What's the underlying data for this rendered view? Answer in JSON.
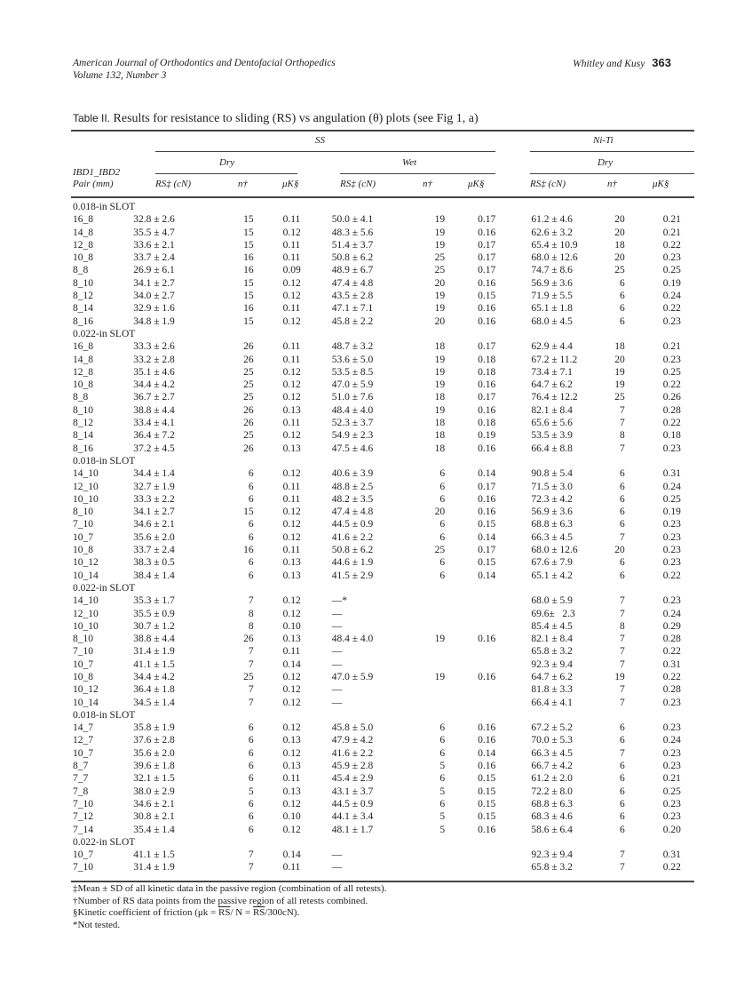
{
  "header": {
    "journal": "American Journal of Orthodontics and Dentofacial Orthopedics",
    "volume": "Volume 132, Number 3",
    "authors": "Whitley and Kusy",
    "page": "363"
  },
  "caption": {
    "label": "Table II.",
    "text": "Results for resistance to sliding (RS) vs angulation (θ) plots (see Fig 1, a)"
  },
  "columns": {
    "group_ss": "SS",
    "group_niti": "Ni-Ti",
    "dry": "Dry",
    "wet": "Wet",
    "niti_dry": "Dry",
    "pair_line1": "IBD1_IBD2",
    "pair_line2": "Pair (mm)",
    "rs": "RS‡ (cN)",
    "n": "n†",
    "mu": "μK§"
  },
  "sections": [
    {
      "label": "0.018-in SLOT",
      "rows": [
        [
          "16_8",
          "32.8 ± 2.6",
          "15",
          "0.11",
          "50.0 ± 4.1",
          "19",
          "0.17",
          "61.2 ± 4.6",
          "20",
          "0.21"
        ],
        [
          "14_8",
          "35.5 ± 4.7",
          "15",
          "0.12",
          "48.3 ± 5.6",
          "19",
          "0.16",
          "62.6 ± 3.2",
          "20",
          "0.21"
        ],
        [
          "12_8",
          "33.6 ± 2.1",
          "15",
          "0.11",
          "51.4 ± 3.7",
          "19",
          "0.17",
          "65.4 ± 10.9",
          "18",
          "0.22"
        ],
        [
          "10_8",
          "33.7 ± 2.4",
          "16",
          "0.11",
          "50.8 ± 6.2",
          "25",
          "0.17",
          "68.0 ± 12.6",
          "20",
          "0.23"
        ],
        [
          "8_8",
          "26.9 ± 6.1",
          "16",
          "0.09",
          "48.9 ± 6.7",
          "25",
          "0.17",
          "74.7 ± 8.6",
          "25",
          "0.25"
        ],
        [
          "8_10",
          "34.1 ± 2.7",
          "15",
          "0.12",
          "47.4 ± 4.8",
          "20",
          "0.16",
          "56.9 ± 3.6",
          "6",
          "0.19"
        ],
        [
          "8_12",
          "34.0 ± 2.7",
          "15",
          "0.12",
          "43.5 ± 2.8",
          "19",
          "0.15",
          "71.9 ± 5.5",
          "6",
          "0.24"
        ],
        [
          "8_14",
          "32.9 ± 1.6",
          "16",
          "0.11",
          "47.1 ± 7.1",
          "19",
          "0.16",
          "65.1 ± 1.8",
          "6",
          "0.22"
        ],
        [
          "8_16",
          "34.8 ± 1.9",
          "15",
          "0.12",
          "45.8 ± 2.2",
          "20",
          "0.16",
          "68.0 ± 4.5",
          "6",
          "0.23"
        ]
      ]
    },
    {
      "label": "0.022-in SLOT",
      "rows": [
        [
          "16_8",
          "33.3 ± 2.6",
          "26",
          "0.11",
          "48.7 ± 3.2",
          "18",
          "0.17",
          "62.9 ± 4.4",
          "18",
          "0.21"
        ],
        [
          "14_8",
          "33.2 ± 2.8",
          "26",
          "0.11",
          "53.6 ± 5.0",
          "19",
          "0.18",
          "67.2 ± 11.2",
          "20",
          "0.23"
        ],
        [
          "12_8",
          "35.1 ± 4.6",
          "25",
          "0.12",
          "53.5 ± 8.5",
          "19",
          "0.18",
          "73.4 ± 7.1",
          "19",
          "0.25"
        ],
        [
          "10_8",
          "34.4 ± 4.2",
          "25",
          "0.12",
          "47.0 ± 5.9",
          "19",
          "0.16",
          "64.7 ± 6.2",
          "19",
          "0.22"
        ],
        [
          "8_8",
          "36.7 ± 2.7",
          "25",
          "0.12",
          "51.0 ± 7.6",
          "18",
          "0.17",
          "76.4 ± 12.2",
          "25",
          "0.26"
        ],
        [
          "8_10",
          "38.8 ± 4.4",
          "26",
          "0.13",
          "48.4 ± 4.0",
          "19",
          "0.16",
          "82.1 ± 8.4",
          "7",
          "0.28"
        ],
        [
          "8_12",
          "33.4 ± 4.1",
          "26",
          "0.11",
          "52.3 ± 3.7",
          "18",
          "0.18",
          "65.6 ± 5.6",
          "7",
          "0.22"
        ],
        [
          "8_14",
          "36.4 ± 7.2",
          "25",
          "0.12",
          "54.9 ± 2.3",
          "18",
          "0.19",
          "53.5 ± 3.9",
          "8",
          "0.18"
        ],
        [
          "8_16",
          "37.2 ± 4.5",
          "26",
          "0.13",
          "47.5 ± 4.6",
          "18",
          "0.16",
          "66.4 ± 8.8",
          "7",
          "0.23"
        ]
      ]
    },
    {
      "label": "0.018-in SLOT",
      "rows": [
        [
          "14_10",
          "34.4 ± 1.4",
          "6",
          "0.12",
          "40.6 ± 3.9",
          "6",
          "0.14",
          "90.8 ± 5.4",
          "6",
          "0.31"
        ],
        [
          "12_10",
          "32.7 ± 1.9",
          "6",
          "0.11",
          "48.8 ± 2.5",
          "6",
          "0.17",
          "71.5 ± 3.0",
          "6",
          "0.24"
        ],
        [
          "10_10",
          "33.3 ± 2.2",
          "6",
          "0.11",
          "48.2 ± 3.5",
          "6",
          "0.16",
          "72.3 ± 4.2",
          "6",
          "0.25"
        ],
        [
          "8_10",
          "34.1 ± 2.7",
          "15",
          "0.12",
          "47.4 ± 4.8",
          "20",
          "0.16",
          "56.9 ± 3.6",
          "6",
          "0.19"
        ],
        [
          "7_10",
          "34.6 ± 2.1",
          "6",
          "0.12",
          "44.5 ± 0.9",
          "6",
          "0.15",
          "68.8 ± 6.3",
          "6",
          "0.23"
        ],
        [
          "10_7",
          "35.6 ± 2.0",
          "6",
          "0.12",
          "41.6 ± 2.2",
          "6",
          "0.14",
          "66.3 ± 4.5",
          "7",
          "0.23"
        ],
        [
          "10_8",
          "33.7 ± 2.4",
          "16",
          "0.11",
          "50.8 ± 6.2",
          "25",
          "0.17",
          "68.0 ± 12.6",
          "20",
          "0.23"
        ],
        [
          "10_12",
          "38.3 ± 0.5",
          "6",
          "0.13",
          "44.6 ± 1.9",
          "6",
          "0.15",
          "67.6 ± 7.9",
          "6",
          "0.23"
        ],
        [
          "10_14",
          "38.4 ± 1.4",
          "6",
          "0.13",
          "41.5 ± 2.9",
          "6",
          "0.14",
          "65.1 ± 4.2",
          "6",
          "0.22"
        ]
      ]
    },
    {
      "label": "0.022-in SLOT",
      "rows": [
        [
          "14_10",
          "35.3 ± 1.7",
          "7",
          "0.12",
          "—*",
          "",
          "",
          "68.0 ± 5.9",
          "7",
          "0.23"
        ],
        [
          "12_10",
          "35.5 ± 0.9",
          "8",
          "0.12",
          "—",
          "",
          "",
          "69.6±   2.3",
          "7",
          "0.24"
        ],
        [
          "10_10",
          "30.7 ± 1.2",
          "8",
          "0.10",
          "—",
          "",
          "",
          "85.4 ± 4.5",
          "8",
          "0.29"
        ],
        [
          "8_10",
          "38.8 ± 4.4",
          "26",
          "0.13",
          "48.4 ± 4.0",
          "19",
          "0.16",
          "82.1 ± 8.4",
          "7",
          "0.28"
        ],
        [
          "7_10",
          "31.4 ± 1.9",
          "7",
          "0.11",
          "—",
          "",
          "",
          "65.8 ± 3.2",
          "7",
          "0.22"
        ],
        [
          "10_7",
          "41.1 ± 1.5",
          "7",
          "0.14",
          "—",
          "",
          "",
          "92.3 ± 9.4",
          "7",
          "0.31"
        ],
        [
          "10_8",
          "34.4 ± 4.2",
          "25",
          "0.12",
          "47.0 ± 5.9",
          "19",
          "0.16",
          "64.7 ± 6.2",
          "19",
          "0.22"
        ],
        [
          "10_12",
          "36.4 ± 1.8",
          "7",
          "0.12",
          "—",
          "",
          "",
          "81.8 ± 3.3",
          "7",
          "0.28"
        ],
        [
          "10_14",
          "34.5 ± 1.4",
          "7",
          "0.12",
          "—",
          "",
          "",
          "66.4 ± 4.1",
          "7",
          "0.23"
        ]
      ]
    },
    {
      "label": "0.018-in SLOT",
      "rows": [
        [
          "14_7",
          "35.8 ± 1.9",
          "6",
          "0.12",
          "45.8 ± 5.0",
          "6",
          "0.16",
          "67.2 ± 5.2",
          "6",
          "0.23"
        ],
        [
          "12_7",
          "37.6 ± 2.8",
          "6",
          "0.13",
          "47.9 ± 4.2",
          "6",
          "0.16",
          "70.0 ± 5.3",
          "6",
          "0.24"
        ],
        [
          "10_7",
          "35.6 ± 2.0",
          "6",
          "0.12",
          "41.6 ± 2.2",
          "6",
          "0.14",
          "66.3 ± 4.5",
          "7",
          "0.23"
        ],
        [
          "8_7",
          "39.6 ± 1.8",
          "6",
          "0.13",
          "45.9 ± 2.8",
          "5",
          "0.16",
          "66.7 ± 4.2",
          "6",
          "0.23"
        ],
        [
          "7_7",
          "32.1 ± 1.5",
          "6",
          "0.11",
          "45.4 ± 2.9",
          "6",
          "0.15",
          "61.2 ± 2.0",
          "6",
          "0.21"
        ],
        [
          "7_8",
          "38.0 ± 2.9",
          "5",
          "0.13",
          "43.1 ± 3.7",
          "5",
          "0.15",
          "72.2 ± 8.0",
          "6",
          "0.25"
        ],
        [
          "7_10",
          "34.6 ± 2.1",
          "6",
          "0.12",
          "44.5 ± 0.9",
          "6",
          "0.15",
          "68.8 ± 6.3",
          "6",
          "0.23"
        ],
        [
          "7_12",
          "30.8 ± 2.1",
          "6",
          "0.10",
          "44.1 ± 3.4",
          "5",
          "0.15",
          "68.3 ± 4.6",
          "6",
          "0.23"
        ],
        [
          "7_14",
          "35.4 ± 1.4",
          "6",
          "0.12",
          "48.1 ± 1.7",
          "5",
          "0.16",
          "58.6 ± 6.4",
          "6",
          "0.20"
        ]
      ]
    },
    {
      "label": "0.022-in SLOT",
      "rows": [
        [
          "10_7",
          "41.1 ± 1.5",
          "7",
          "0.14",
          "—",
          "",
          "",
          "92.3 ± 9.4",
          "7",
          "0.31"
        ],
        [
          "7_10",
          "31.4 ± 1.9",
          "7",
          "0.11",
          "—",
          "",
          "",
          "65.8 ± 3.2",
          "7",
          "0.22"
        ]
      ]
    }
  ],
  "footnotes": {
    "f1": "‡Mean ± SD of all kinetic data in the passive region (combination of all retests).",
    "f2": "†Number of RS data points from the passive region of all retests combined.",
    "f3_pre": "§Kinetic coefficient of friction (μk = ",
    "f3_rs1": "RS",
    "f3_mid": "/ N = ",
    "f3_rs2": "RS",
    "f3_post": "/300cN).",
    "f4": "*Not tested."
  }
}
